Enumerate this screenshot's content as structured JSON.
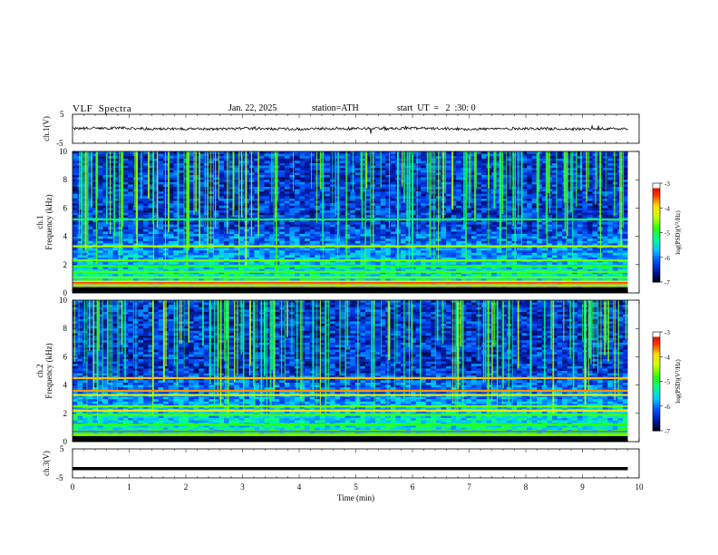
{
  "header": {
    "title": "VLF  Spectra",
    "date": "Jan. 22, 2025",
    "station": "station=ATH",
    "start": "start  UT  =   2  :30: 0"
  },
  "colors": {
    "trace": "#000000",
    "colormap": [
      "#000000",
      "#0018a0",
      "#0050ff",
      "#00c8ff",
      "#00ff90",
      "#30ff00",
      "#c8ff00",
      "#ffe000",
      "#ff3000",
      "#c80000",
      "#ffffff"
    ]
  },
  "chart_data": [
    {
      "type": "line",
      "name": "ch1-waveform",
      "ylabel": "ch.1(V)",
      "yticks": [
        "5",
        "-5"
      ],
      "ylim": [
        -5,
        5
      ],
      "xlim": [
        0,
        10
      ],
      "series": [
        {
          "x": [
            0,
            0.5,
            1,
            1.5,
            2,
            2.5,
            3,
            3.5,
            4,
            4.5,
            5,
            5.5,
            6,
            6.5,
            7,
            7.5,
            8,
            8.5,
            9,
            9.5,
            9.8
          ],
          "values": [
            0,
            0.3,
            0.2,
            -0.1,
            0,
            -0.2,
            0.1,
            0,
            -0.1,
            0,
            0.1,
            0,
            0.2,
            0,
            -0.1,
            0,
            0.1,
            0,
            -0.1,
            0,
            0
          ]
        }
      ]
    },
    {
      "type": "heatmap",
      "name": "ch1-spectrogram",
      "ylabel": "ch.1\nFrequency (kHz)",
      "ylabel_ch": "ch.1",
      "ylabel_freq": "Frequency (kHz)",
      "yticks": [
        "0",
        "2",
        "4",
        "6",
        "8",
        "10"
      ],
      "ylim": [
        0,
        10
      ],
      "xlim": [
        0,
        10
      ],
      "data_end_min": 9.8,
      "colorbar": {
        "label": "log(PSD)(V²/Hz)",
        "ticks": [
          "-3",
          "-4",
          "-5",
          "-6",
          "-7"
        ],
        "range": [
          -7,
          -3
        ]
      },
      "bands": [
        {
          "f": 0.35,
          "level": -3.4
        },
        {
          "f": 0.55,
          "level": -3.8
        },
        {
          "f": 0.8,
          "level": -4.2
        },
        {
          "f": 1.1,
          "level": -4.6
        },
        {
          "f": 1.5,
          "level": -4.7
        },
        {
          "f": 1.9,
          "level": -4.8
        },
        {
          "f": 2.3,
          "level": -4.6
        },
        {
          "f": 3.3,
          "level": -4.4
        },
        {
          "f": 5.2,
          "level": -5.1
        }
      ]
    },
    {
      "type": "heatmap",
      "name": "ch2-spectrogram",
      "ylabel": "ch.2\nFrequency (kHz)",
      "ylabel_ch": "ch.2",
      "ylabel_freq": "Frequency (kHz)",
      "yticks": [
        "0",
        "2",
        "4",
        "6",
        "8",
        "10"
      ],
      "ylim": [
        0,
        10
      ],
      "xlim": [
        0,
        10
      ],
      "data_end_min": 9.8,
      "colorbar": {
        "label": "log(PSD)(V²/Hz)",
        "ticks": [
          "-3",
          "-4",
          "-5",
          "-6",
          "-7"
        ],
        "range": [
          -7,
          -3
        ]
      },
      "bands": [
        {
          "f": 0.5,
          "level": -4.6
        },
        {
          "f": 1.2,
          "level": -4.8
        },
        {
          "f": 1.9,
          "level": -4.7
        },
        {
          "f": 2.2,
          "level": -3.9
        },
        {
          "f": 2.5,
          "level": -4.6
        },
        {
          "f": 3.3,
          "level": -4.2
        },
        {
          "f": 3.6,
          "level": -3.7
        },
        {
          "f": 4.5,
          "level": -3.8
        }
      ]
    },
    {
      "type": "line",
      "name": "ch3-waveform",
      "ylabel": "ch.3(V)",
      "yticks": [
        "5",
        "-5"
      ],
      "ylim": [
        -5,
        5
      ],
      "xlim": [
        0,
        10
      ],
      "xlabel": "Time  (min)",
      "xticks": [
        "0",
        "1",
        "2",
        "3",
        "4",
        "5",
        "6",
        "7",
        "8",
        "9",
        "10"
      ],
      "series": [
        {
          "x": [
            0,
            9.8
          ],
          "values": [
            -1.8,
            -1.8
          ]
        }
      ]
    }
  ]
}
